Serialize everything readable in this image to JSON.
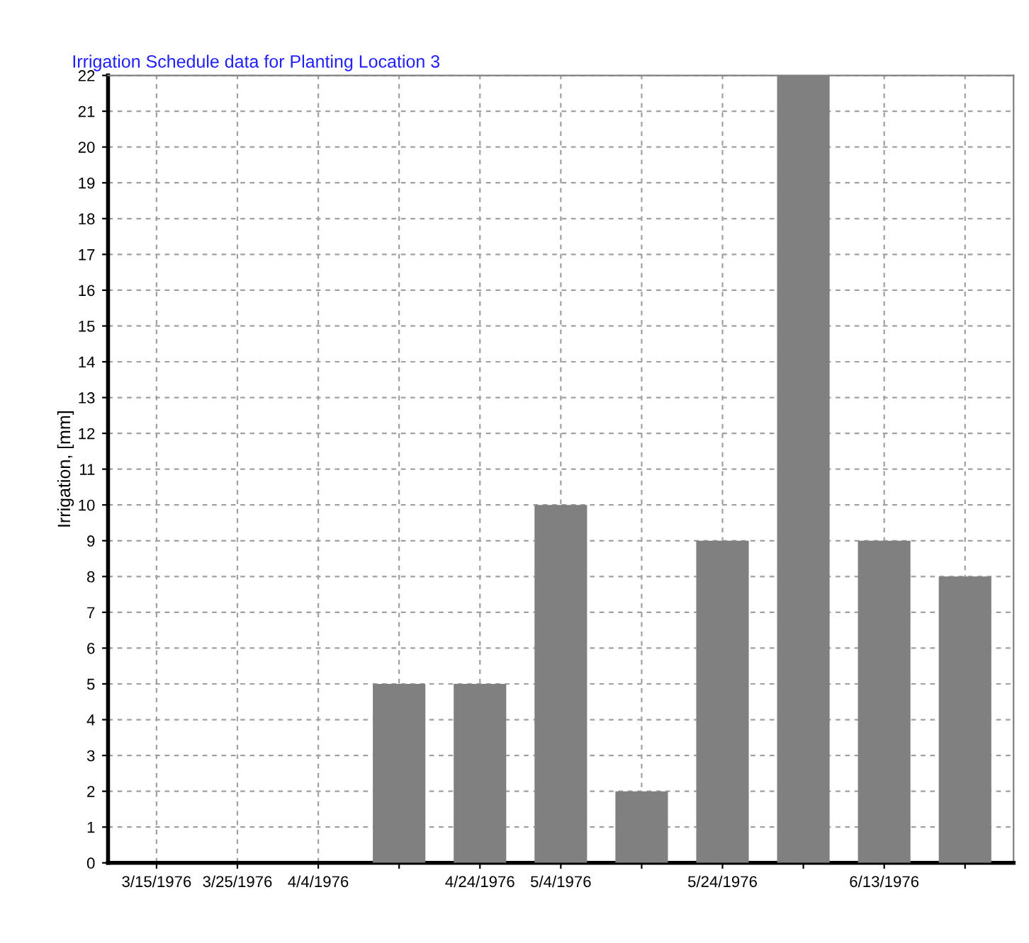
{
  "chart_data": {
    "type": "bar",
    "title": "Irrigation Schedule data for Planting Location 3",
    "ylabel": "Irrigation, [mm]",
    "x": [
      "1976-04-14",
      "1976-04-24",
      "1976-05-04",
      "1976-05-14",
      "1976-05-24",
      "1976-06-03",
      "1976-06-13",
      "1976-06-23"
    ],
    "values": [
      5,
      5,
      10,
      2,
      9,
      22,
      9,
      8
    ],
    "color": "#808080",
    "xlim": [
      "1976-03-09",
      "1976-06-29"
    ],
    "xticks": [
      {
        "value": "1976-03-15",
        "label": "3/15/1976"
      },
      {
        "value": "1976-03-25",
        "label": "3/25/1976"
      },
      {
        "value": "1976-04-04",
        "label": "4/4/1976"
      },
      {
        "value": "1976-04-14",
        "label": null
      },
      {
        "value": "1976-04-24",
        "label": "4/24/1976"
      },
      {
        "value": "1976-05-04",
        "label": "5/4/1976"
      },
      {
        "value": "1976-05-14",
        "label": null
      },
      {
        "value": "1976-05-24",
        "label": "5/24/1976"
      },
      {
        "value": "1976-06-03",
        "label": null
      },
      {
        "value": "1976-06-13",
        "label": "6/13/1976"
      },
      {
        "value": "1976-06-23",
        "label": null
      }
    ],
    "ylim": [
      0,
      22
    ],
    "yticks": [
      0,
      1,
      2,
      3,
      4,
      5,
      6,
      7,
      8,
      9,
      10,
      11,
      12,
      13,
      14,
      15,
      16,
      17,
      18,
      19,
      20,
      21,
      22
    ],
    "grid": true
  }
}
